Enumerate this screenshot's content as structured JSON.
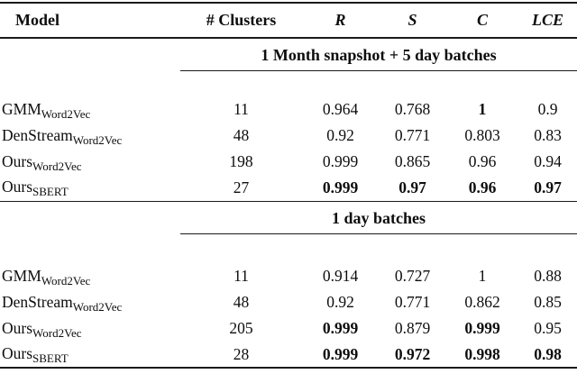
{
  "table": {
    "columns": {
      "model": "Model",
      "clusters": "# Clusters",
      "r": "R",
      "s": "S",
      "c": "C",
      "lce": "LCE"
    },
    "rule_color": "#1a1a1a",
    "text_color": "#0d0d0d",
    "background_color": "#ffffff",
    "sections": [
      {
        "title": "1 Month snapshot + 5 day batches",
        "rows": [
          {
            "model_base": "GMM",
            "model_sub": "Word2Vec",
            "clusters": "11",
            "R": {
              "v": "0.964",
              "b": false
            },
            "S": {
              "v": "0.768",
              "b": false
            },
            "C": {
              "v": "1",
              "b": true
            },
            "LCE": {
              "v": "0.9",
              "b": false
            }
          },
          {
            "model_base": "DenStream",
            "model_sub": "Word2Vec",
            "clusters": "48",
            "R": {
              "v": "0.92",
              "b": false
            },
            "S": {
              "v": "0.771",
              "b": false
            },
            "C": {
              "v": "0.803",
              "b": false
            },
            "LCE": {
              "v": "0.83",
              "b": false
            }
          },
          {
            "model_base": "Ours",
            "model_sub": "Word2Vec",
            "clusters": "198",
            "R": {
              "v": "0.999",
              "b": false
            },
            "S": {
              "v": "0.865",
              "b": false
            },
            "C": {
              "v": "0.96",
              "b": false
            },
            "LCE": {
              "v": "0.94",
              "b": false
            }
          },
          {
            "model_base": "Ours",
            "model_sub": "SBERT",
            "clusters": "27",
            "R": {
              "v": "0.999",
              "b": true
            },
            "S": {
              "v": "0.97",
              "b": true
            },
            "C": {
              "v": "0.96",
              "b": true
            },
            "LCE": {
              "v": "0.97",
              "b": true
            }
          }
        ]
      },
      {
        "title": "1 day batches",
        "rows": [
          {
            "model_base": "GMM",
            "model_sub": "Word2Vec",
            "clusters": "11",
            "R": {
              "v": "0.914",
              "b": false
            },
            "S": {
              "v": "0.727",
              "b": false
            },
            "C": {
              "v": "1",
              "b": false
            },
            "LCE": {
              "v": "0.88",
              "b": false
            }
          },
          {
            "model_base": "DenStream",
            "model_sub": "Word2Vec",
            "clusters": "48",
            "R": {
              "v": "0.92",
              "b": false
            },
            "S": {
              "v": "0.771",
              "b": false
            },
            "C": {
              "v": "0.862",
              "b": false
            },
            "LCE": {
              "v": "0.85",
              "b": false
            }
          },
          {
            "model_base": "Ours",
            "model_sub": "Word2Vec",
            "clusters": "205",
            "R": {
              "v": "0.999",
              "b": true
            },
            "S": {
              "v": "0.879",
              "b": false
            },
            "C": {
              "v": "0.999",
              "b": true
            },
            "LCE": {
              "v": "0.95",
              "b": false
            }
          },
          {
            "model_base": "Ours",
            "model_sub": "SBERT",
            "clusters": "28",
            "R": {
              "v": "0.999",
              "b": true
            },
            "S": {
              "v": "0.972",
              "b": true
            },
            "C": {
              "v": "0.998",
              "b": true
            },
            "LCE": {
              "v": "0.98",
              "b": true
            }
          }
        ]
      }
    ]
  }
}
